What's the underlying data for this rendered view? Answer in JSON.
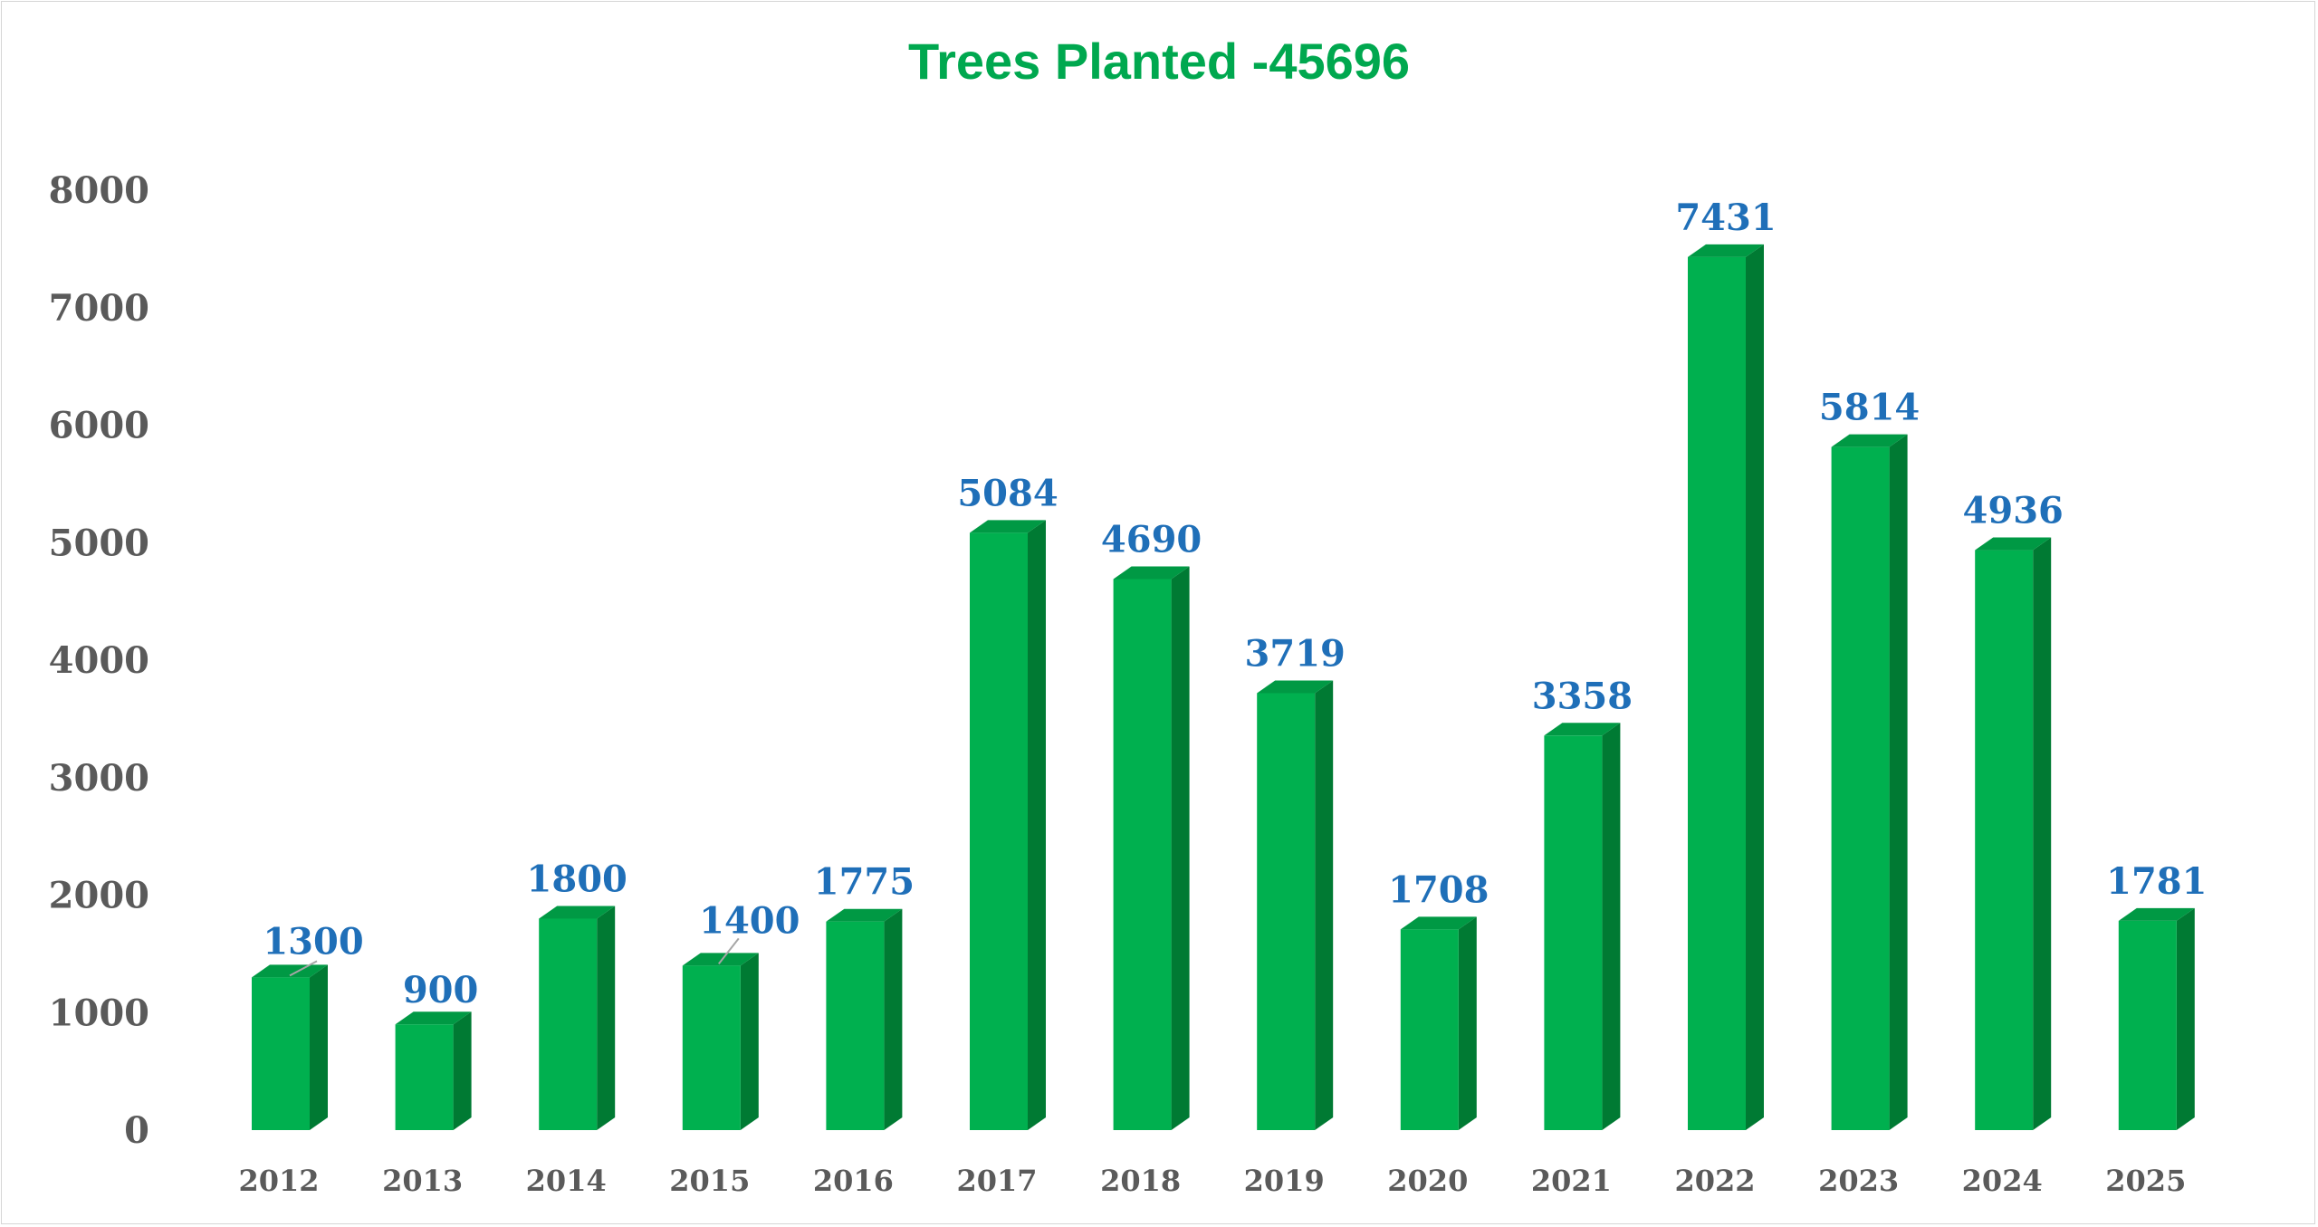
{
  "chart_data": {
    "type": "bar",
    "title": "Trees Planted -45696",
    "xlabel": "",
    "ylabel": "",
    "categories": [
      "2012",
      "2013",
      "2014",
      "2015",
      "2016",
      "2017",
      "2018",
      "2019",
      "2020",
      "2021",
      "2022",
      "2023",
      "2024",
      "2025"
    ],
    "values": [
      1300,
      900,
      1800,
      1400,
      1775,
      5084,
      4690,
      3719,
      1708,
      3358,
      7431,
      5814,
      4936,
      1781
    ],
    "ylim": [
      0,
      8000
    ],
    "yticks": [
      0,
      1000,
      2000,
      3000,
      4000,
      5000,
      6000,
      7000,
      8000
    ],
    "grid": false,
    "legend": "none",
    "data_labels": true,
    "style": "3d-column",
    "colors": {
      "bar_front": "#00b04f",
      "bar_side": "#007a33",
      "bar_top": "#009944",
      "title": "#00a84f",
      "data_label": "#1f6fb8",
      "tick": "#5a5a5a"
    }
  }
}
